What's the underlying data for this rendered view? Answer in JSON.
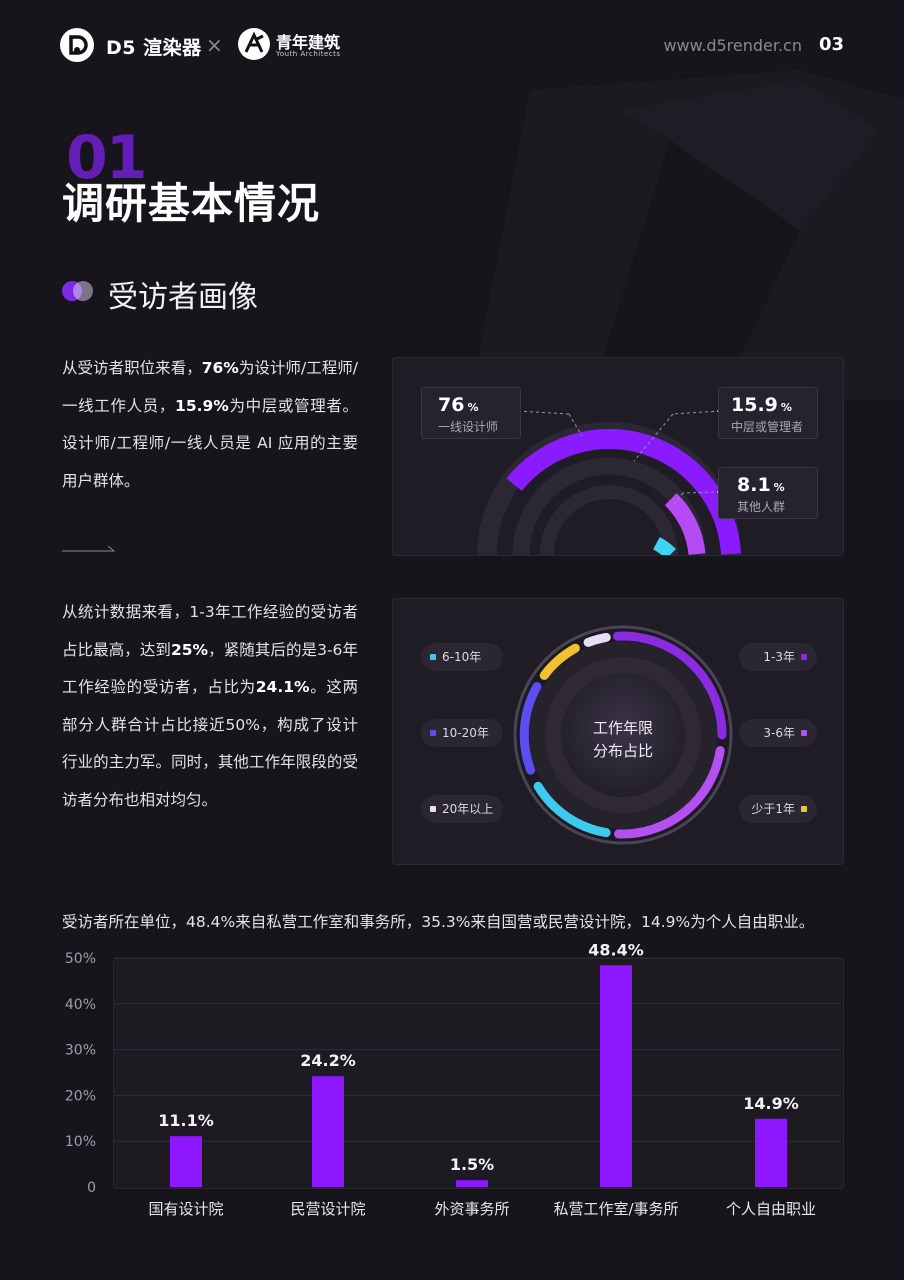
{
  "header": {
    "brand1": "D5 渲染器",
    "separator": "×",
    "brand2": "青年建筑",
    "brand2_sub": "Youth Architects",
    "website": "www.d5render.cn",
    "page_number": "03"
  },
  "section": {
    "number": "01",
    "title": "调研基本情况",
    "subtitle": "受访者画像"
  },
  "paragraph1": {
    "p1": "从受访者职位来看，",
    "b1": "76%",
    "p2": "为设计师/工程师/一线工作人员，",
    "b2": "15.9%",
    "p3": "为中层或管理者。设计师/工程师/一线人员是 AI 应用的主要用户群体。"
  },
  "paragraph2": {
    "p1": "从统计数据来看，1-3年工作经验的受访者占比最高，达到",
    "b1": "25%",
    "p2": "，紧随其后的是3-6年工作经验的受访者，占比为",
    "b2": "24.1%",
    "p3": "。这两部分人群合计占比接近50%，构成了设计行业的主力军。同时，其他工作年限段的受访者分布也相对均匀。"
  },
  "position_chart": {
    "items": [
      {
        "value": "76",
        "unit": "%",
        "label": "一线设计师",
        "color": "#8a1bff"
      },
      {
        "value": "15.9",
        "unit": "%",
        "label": "中层或管理者",
        "color": "#b64af5"
      },
      {
        "value": "8.1",
        "unit": "%",
        "label": "其他人群",
        "color": "#3ed3f0"
      }
    ]
  },
  "experience_chart": {
    "center_line1": "工作年限",
    "center_line2": "分布占比",
    "legend_left": [
      {
        "label": "6-10年",
        "color": "#3ec9ee"
      },
      {
        "label": "10-20年",
        "color": "#5b4ef0"
      },
      {
        "label": "20年以上",
        "color": "#e9dcf5"
      }
    ],
    "legend_right": [
      {
        "label": "1-3年",
        "color": "#8a2be2"
      },
      {
        "label": "3-6年",
        "color": "#b44ff0"
      },
      {
        "label": "少于1年",
        "color": "#f2c12e"
      }
    ]
  },
  "unit_intro": "受访者所在单位，48.4%来自私营工作室和事务所，35.3%来自国营或民营设计院，14.9%为个人自由职业。",
  "chart_data": {
    "type": "bar",
    "categories": [
      "国有设计院",
      "民营设计院",
      "外资事务所",
      "私营工作室/事务所",
      "个人自由职业"
    ],
    "values": [
      11.1,
      24.2,
      1.5,
      48.4,
      14.9
    ],
    "value_labels": [
      "11.1%",
      "24.2%",
      "1.5%",
      "48.4%",
      "14.9%"
    ],
    "y_ticks": [
      "0",
      "10%",
      "20%",
      "30%",
      "40%",
      "50%"
    ],
    "ylim": [
      0,
      50
    ],
    "grid": true,
    "bar_color": "#8f17ff",
    "title": "",
    "xlabel": "",
    "ylabel": ""
  }
}
